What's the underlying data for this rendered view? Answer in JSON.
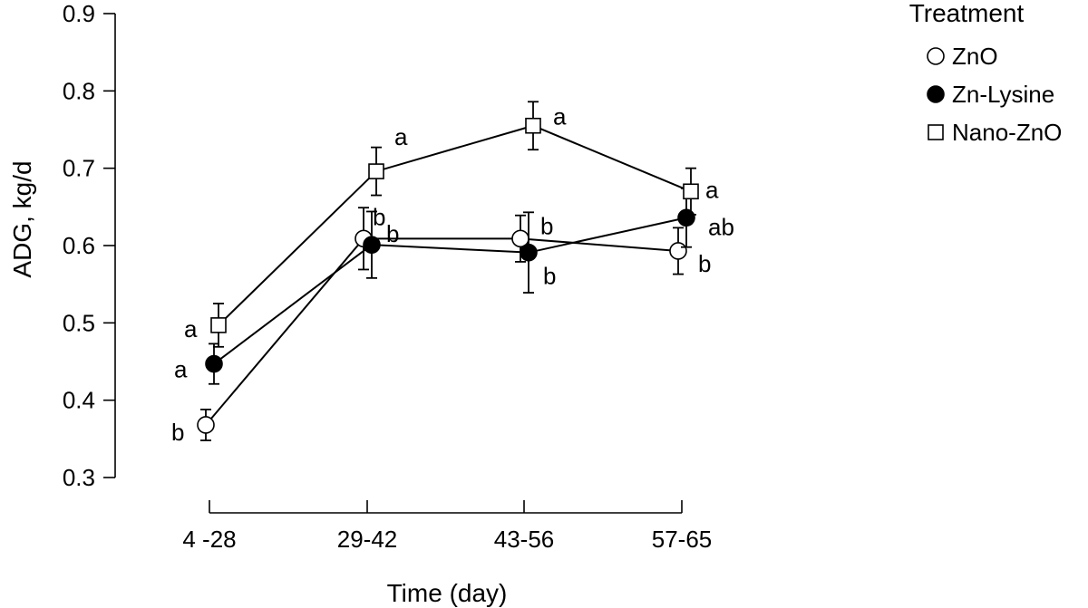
{
  "chart_data": {
    "type": "line",
    "xlabel": "Time (day)",
    "ylabel": "ADG, kg/d",
    "categories": [
      "4 -28",
      "29-42",
      "43-56",
      "57-65"
    ],
    "ylim": [
      0.3,
      0.9
    ],
    "yticks": [
      "0.3",
      "0.4",
      "0.5",
      "0.6",
      "0.7",
      "0.8",
      "0.9"
    ],
    "legend": {
      "title": "Treatment",
      "position": "top-right"
    },
    "series": [
      {
        "name": "ZnO",
        "marker": "circle-open",
        "values": [
          0.368,
          0.609,
          0.609,
          0.593
        ],
        "errors": [
          0.02,
          0.04,
          0.03,
          0.03
        ],
        "labels": [
          "b",
          "",
          "b",
          "b"
        ]
      },
      {
        "name": "Zn-Lysine",
        "marker": "circle-filled",
        "values": [
          0.447,
          0.601,
          0.591,
          0.636
        ],
        "errors": [
          0.026,
          0.043,
          0.052,
          0.038
        ],
        "labels": [
          "a",
          "b",
          "b",
          "ab"
        ]
      },
      {
        "name": "Nano-ZnO",
        "marker": "square-open",
        "values": [
          0.497,
          0.696,
          0.755,
          0.67
        ],
        "errors": [
          0.028,
          0.031,
          0.031,
          0.03
        ],
        "labels": [
          "a",
          "a",
          "a",
          "a"
        ]
      }
    ],
    "extra_labels": [
      {
        "series": "ZnO",
        "category": "29-42",
        "text": "b"
      }
    ]
  }
}
